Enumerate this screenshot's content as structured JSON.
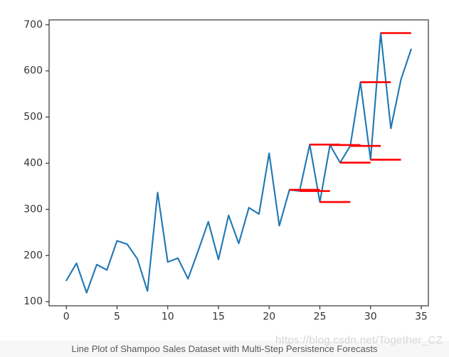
{
  "page": {
    "background": "#ffffff"
  },
  "caption": {
    "text": "Line Plot of Shampoo Sales Dataset with Multi-Step Persistence Forecasts",
    "background": "#f7f7f7",
    "color": "#595959"
  },
  "watermark": {
    "text": "https://blog.csdn.net/Together_CZ",
    "color": "#d6d6d6"
  },
  "chart_data": {
    "type": "line",
    "title": "",
    "xlabel": "",
    "ylabel": "",
    "grid": false,
    "legend": false,
    "axis_color": "#333333",
    "tick_label_color": "#333333",
    "x": [
      0,
      1,
      2,
      3,
      4,
      5,
      6,
      7,
      8,
      9,
      10,
      11,
      12,
      13,
      14,
      15,
      16,
      17,
      18,
      19,
      20,
      21,
      22,
      23,
      24,
      25,
      26,
      27,
      28,
      29,
      30,
      31,
      32,
      33,
      34
    ],
    "series": [
      {
        "name": "shampoo-sales-observed",
        "color": "#1f77b4",
        "values": [
          145.9,
          183.1,
          119.3,
          180.3,
          168.5,
          231.8,
          224.5,
          192.8,
          122.9,
          336.5,
          185.9,
          194.3,
          149.5,
          210.1,
          273.3,
          191.4,
          287.0,
          226.0,
          303.6,
          289.9,
          421.6,
          264.5,
          342.3,
          339.7,
          440.4,
          315.9,
          439.3,
          401.3,
          437.4,
          575.5,
          407.6,
          682.0,
          475.3,
          581.3,
          646.9
        ]
      }
    ],
    "forecasts": {
      "name": "multi-step-persistence-forecasts",
      "color": "#ff0000",
      "horizon": 3,
      "segments": [
        {
          "start": 22,
          "end": 25,
          "value": 342.3
        },
        {
          "start": 23,
          "end": 26,
          "value": 339.7
        },
        {
          "start": 24,
          "end": 27,
          "value": 440.4
        },
        {
          "start": 25,
          "end": 28,
          "value": 315.9
        },
        {
          "start": 26,
          "end": 29,
          "value": 439.3
        },
        {
          "start": 27,
          "end": 30,
          "value": 401.3
        },
        {
          "start": 28,
          "end": 31,
          "value": 437.4
        },
        {
          "start": 29,
          "end": 32,
          "value": 575.5
        },
        {
          "start": 30,
          "end": 33,
          "value": 407.6
        },
        {
          "start": 31,
          "end": 34,
          "value": 682.0
        }
      ]
    },
    "xticks": [
      0,
      5,
      10,
      15,
      20,
      25,
      30,
      35
    ],
    "yticks": [
      100,
      200,
      300,
      400,
      500,
      600,
      700
    ],
    "xlim": [
      -1.7,
      35.7
    ],
    "ylim": [
      91,
      710.5
    ]
  }
}
